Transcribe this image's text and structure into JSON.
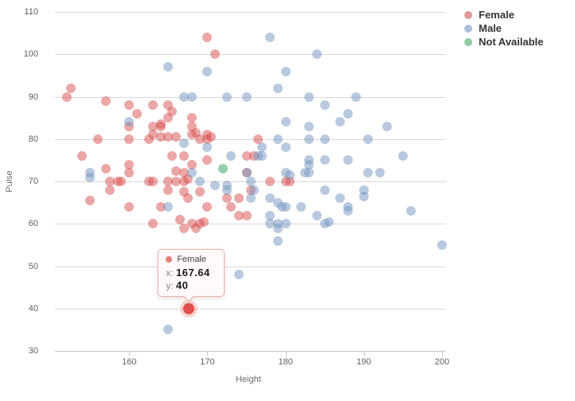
{
  "chart": {
    "xlabel": "Height",
    "ylabel": "Pulse"
  },
  "legend": {
    "items": [
      {
        "label": "Female",
        "color": "#e59899"
      },
      {
        "label": "Male",
        "color": "#aabfd9"
      },
      {
        "label": "Not Available",
        "color": "#8ccaa3"
      }
    ]
  },
  "tooltip": {
    "series_label": "Female",
    "dot_color": "#e2807f",
    "x_label": "x:",
    "x_value": "167.64",
    "y_label": "y:",
    "y_value": "40"
  },
  "chart_data": {
    "type": "scatter",
    "title": "",
    "xlabel": "Height",
    "ylabel": "Pulse",
    "xlim": [
      150.5,
      200.5
    ],
    "ylim": [
      30,
      110
    ],
    "x_ticks": [
      160,
      170,
      180,
      190,
      200
    ],
    "y_ticks": [
      30,
      40,
      50,
      60,
      70,
      80,
      90,
      100,
      110
    ],
    "grid": "horizontal-only",
    "legend_position": "top-right",
    "marker_diameter_px": 12,
    "series": [
      {
        "name": "Female",
        "color": "rgba(216,80,80,0.5)",
        "points": [
          [
            152.5,
            92
          ],
          [
            152,
            90
          ],
          [
            157,
            89
          ],
          [
            160,
            88
          ],
          [
            163,
            88
          ],
          [
            165,
            88
          ],
          [
            161,
            86
          ],
          [
            165.5,
            86.5
          ],
          [
            165,
            85
          ],
          [
            168,
            85
          ],
          [
            164,
            83.5
          ],
          [
            163,
            83
          ],
          [
            160,
            83
          ],
          [
            164,
            83
          ],
          [
            168,
            83
          ],
          [
            168.5,
            81.5
          ],
          [
            168,
            81
          ],
          [
            163,
            81
          ],
          [
            170,
            81
          ],
          [
            170.5,
            80.5
          ],
          [
            156,
            80
          ],
          [
            160,
            80
          ],
          [
            162.5,
            80
          ],
          [
            164,
            80.5
          ],
          [
            165,
            80.5
          ],
          [
            166,
            80.5
          ],
          [
            169,
            80
          ],
          [
            170,
            80
          ],
          [
            176.5,
            80
          ],
          [
            154,
            76
          ],
          [
            165.5,
            76
          ],
          [
            167,
            76
          ],
          [
            170,
            75
          ],
          [
            175,
            76
          ],
          [
            176,
            76
          ],
          [
            157,
            73
          ],
          [
            160,
            74
          ],
          [
            160,
            72
          ],
          [
            168,
            74
          ],
          [
            166,
            72.5
          ],
          [
            167,
            72
          ],
          [
            175,
            72
          ],
          [
            157.5,
            70
          ],
          [
            158.5,
            70
          ],
          [
            159,
            70
          ],
          [
            162.5,
            70
          ],
          [
            163,
            70
          ],
          [
            165,
            70
          ],
          [
            166,
            70
          ],
          [
            167,
            70
          ],
          [
            167.5,
            70.5
          ],
          [
            178,
            70
          ],
          [
            180,
            70
          ],
          [
            180.5,
            70
          ],
          [
            155,
            65.5
          ],
          [
            157.5,
            68
          ],
          [
            165,
            68
          ],
          [
            167,
            67.5
          ],
          [
            169,
            67.5
          ],
          [
            175.5,
            68
          ],
          [
            167.5,
            66
          ],
          [
            172.5,
            66
          ],
          [
            174,
            66
          ],
          [
            160,
            64
          ],
          [
            164,
            64
          ],
          [
            170,
            64
          ],
          [
            173,
            64
          ],
          [
            174,
            62
          ],
          [
            175,
            62
          ],
          [
            163,
            60
          ],
          [
            166.5,
            61
          ],
          [
            167,
            59
          ],
          [
            168,
            60
          ],
          [
            169,
            60
          ],
          [
            169.5,
            60.5
          ],
          [
            168.5,
            59
          ],
          [
            170,
            104
          ],
          [
            171,
            100
          ],
          [
            167.64,
            40
          ]
        ]
      },
      {
        "name": "Male",
        "color": "rgba(115,150,192,0.5)",
        "points": [
          [
            165,
            97
          ],
          [
            170,
            96
          ],
          [
            167,
            90
          ],
          [
            168,
            90
          ],
          [
            172.5,
            90
          ],
          [
            175,
            90
          ],
          [
            178,
            104
          ],
          [
            184,
            100
          ],
          [
            180,
            96
          ],
          [
            179,
            92
          ],
          [
            183,
            90
          ],
          [
            189,
            90
          ],
          [
            185,
            88
          ],
          [
            188,
            86
          ],
          [
            187,
            84
          ],
          [
            180,
            84
          ],
          [
            183,
            83
          ],
          [
            193,
            83
          ],
          [
            160,
            84
          ],
          [
            155,
            72
          ],
          [
            155,
            71
          ],
          [
            168,
            72
          ],
          [
            170,
            78
          ],
          [
            167,
            79
          ],
          [
            173,
            76
          ],
          [
            171,
            69
          ],
          [
            172.5,
            69
          ],
          [
            172.5,
            68
          ],
          [
            169,
            70
          ],
          [
            165,
            64
          ],
          [
            179,
            80
          ],
          [
            183,
            80
          ],
          [
            185,
            80
          ],
          [
            190.5,
            80
          ],
          [
            177,
            78
          ],
          [
            180,
            78
          ],
          [
            177,
            76
          ],
          [
            176.5,
            76
          ],
          [
            183,
            75
          ],
          [
            183,
            74
          ],
          [
            183,
            72
          ],
          [
            182.5,
            72
          ],
          [
            185,
            75
          ],
          [
            188,
            75
          ],
          [
            190.5,
            72
          ],
          [
            192,
            72
          ],
          [
            195,
            76
          ],
          [
            180,
            72
          ],
          [
            180.5,
            71.5
          ],
          [
            175.5,
            70
          ],
          [
            176,
            68
          ],
          [
            175.5,
            66
          ],
          [
            175,
            72
          ],
          [
            185,
            68
          ],
          [
            190,
            68
          ],
          [
            190,
            66.5
          ],
          [
            187,
            66
          ],
          [
            188,
            64
          ],
          [
            188,
            63
          ],
          [
            178,
            66
          ],
          [
            179,
            65
          ],
          [
            179.5,
            64
          ],
          [
            180,
            64
          ],
          [
            182,
            64
          ],
          [
            184,
            62
          ],
          [
            196,
            63
          ],
          [
            178,
            62
          ],
          [
            178,
            60
          ],
          [
            179,
            60
          ],
          [
            180,
            60
          ],
          [
            179,
            59
          ],
          [
            185,
            60
          ],
          [
            185.5,
            60.5
          ],
          [
            179,
            56
          ],
          [
            200,
            55
          ],
          [
            174,
            48
          ],
          [
            165,
            35
          ]
        ]
      },
      {
        "name": "Not Available",
        "color": "rgba(80,175,115,0.6)",
        "points": [
          [
            172,
            73
          ]
        ]
      }
    ],
    "highlight": {
      "series": "Female",
      "x": 167.64,
      "y": 40,
      "color": "#e0504e"
    }
  }
}
